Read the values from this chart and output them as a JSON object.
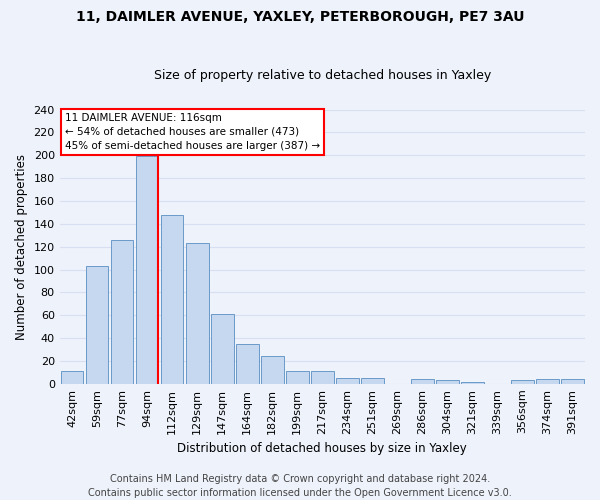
{
  "title1": "11, DAIMLER AVENUE, YAXLEY, PETERBOROUGH, PE7 3AU",
  "title2": "Size of property relative to detached houses in Yaxley",
  "xlabel": "Distribution of detached houses by size in Yaxley",
  "ylabel": "Number of detached properties",
  "bar_labels": [
    "42sqm",
    "59sqm",
    "77sqm",
    "94sqm",
    "112sqm",
    "129sqm",
    "147sqm",
    "164sqm",
    "182sqm",
    "199sqm",
    "217sqm",
    "234sqm",
    "251sqm",
    "269sqm",
    "286sqm",
    "304sqm",
    "321sqm",
    "339sqm",
    "356sqm",
    "374sqm",
    "391sqm"
  ],
  "bar_values": [
    11,
    103,
    126,
    199,
    148,
    123,
    61,
    35,
    24,
    11,
    11,
    5,
    5,
    0,
    4,
    3,
    2,
    0,
    3,
    4,
    4
  ],
  "bar_color": "#c5d8f0",
  "bar_edge_color": "#5a8fc2",
  "vline_index": 3,
  "vline_color": "red",
  "annotation_text": "11 DAIMLER AVENUE: 116sqm\n← 54% of detached houses are smaller (473)\n45% of semi-detached houses are larger (387) →",
  "annotation_box_color": "white",
  "annotation_box_edge": "red",
  "ylim": [
    0,
    240
  ],
  "yticks": [
    0,
    20,
    40,
    60,
    80,
    100,
    120,
    140,
    160,
    180,
    200,
    220,
    240
  ],
  "footer1": "Contains HM Land Registry data © Crown copyright and database right 2024.",
  "footer2": "Contains public sector information licensed under the Open Government Licence v3.0.",
  "bg_color": "#eef2fb",
  "grid_color": "#d8dff0",
  "title1_fontsize": 10,
  "title2_fontsize": 9,
  "axis_label_fontsize": 8.5,
  "tick_fontsize": 8,
  "footer_fontsize": 7
}
